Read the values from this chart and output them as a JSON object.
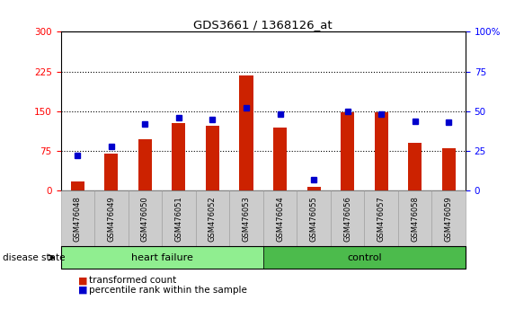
{
  "title": "GDS3661 / 1368126_at",
  "samples": [
    "GSM476048",
    "GSM476049",
    "GSM476050",
    "GSM476051",
    "GSM476052",
    "GSM476053",
    "GSM476054",
    "GSM476055",
    "GSM476056",
    "GSM476057",
    "GSM476058",
    "GSM476059"
  ],
  "red_values": [
    18,
    70,
    98,
    128,
    122,
    218,
    120,
    8,
    148,
    148,
    90,
    80
  ],
  "blue_pct": [
    22,
    28,
    42,
    46,
    45,
    52,
    48,
    7,
    50,
    48,
    44,
    43
  ],
  "groups": [
    {
      "label": "heart failure",
      "start": 0,
      "end": 6,
      "color": "#90EE90"
    },
    {
      "label": "control",
      "start": 6,
      "end": 12,
      "color": "#4CBB4C"
    }
  ],
  "ylim_left": [
    0,
    300
  ],
  "ylim_right": [
    0,
    100
  ],
  "yticks_left": [
    0,
    75,
    150,
    225,
    300
  ],
  "yticks_right": [
    0,
    25,
    50,
    75,
    100
  ],
  "bar_color": "#CC2200",
  "dot_color": "#0000CC",
  "tick_area_color": "#CCCCCC",
  "tick_area_border": "#999999",
  "legend_items": [
    "transformed count",
    "percentile rank within the sample"
  ],
  "disease_state_label": "disease state"
}
